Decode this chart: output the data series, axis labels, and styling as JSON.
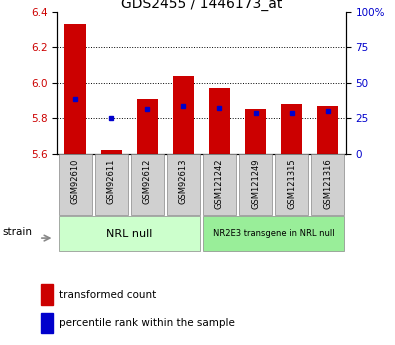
{
  "title": "GDS2455 / 1446173_at",
  "categories": [
    "GSM92610",
    "GSM92611",
    "GSM92612",
    "GSM92613",
    "GSM121242",
    "GSM121249",
    "GSM121315",
    "GSM121316"
  ],
  "bar_values": [
    6.33,
    5.62,
    5.91,
    6.04,
    5.97,
    5.85,
    5.88,
    5.87
  ],
  "percentile_values": [
    5.91,
    5.8,
    5.85,
    5.87,
    5.86,
    5.83,
    5.83,
    5.84
  ],
  "bar_bottom": 5.6,
  "ylim_left": [
    5.6,
    6.4
  ],
  "ylim_right": [
    0,
    100
  ],
  "yticks_left": [
    5.6,
    5.8,
    6.0,
    6.2,
    6.4
  ],
  "yticks_right": [
    0,
    25,
    50,
    75,
    100
  ],
  "ytick_labels_right": [
    "0",
    "25",
    "50",
    "75",
    "100%"
  ],
  "bar_color": "#cc0000",
  "percentile_color": "#0000cc",
  "group1_label": "NRL null",
  "group2_label": "NR2E3 transgene in NRL null",
  "group1_indices": [
    0,
    1,
    2,
    3
  ],
  "group2_indices": [
    4,
    5,
    6,
    7
  ],
  "group1_color": "#ccffcc",
  "group2_color": "#99ee99",
  "strain_label": "strain",
  "legend_bar_label": "transformed count",
  "legend_pct_label": "percentile rank within the sample",
  "bar_color_red": "#cc0000",
  "percentile_color_blue": "#0000cc",
  "grid_linestyle": ":",
  "grid_linewidth": 0.7,
  "bar_width": 0.6,
  "tick_label_fontsize": 7.5,
  "title_fontsize": 10,
  "cat_fontsize": 6,
  "group_fontsize1": 8,
  "group_fontsize2": 6,
  "legend_fontsize": 7.5
}
